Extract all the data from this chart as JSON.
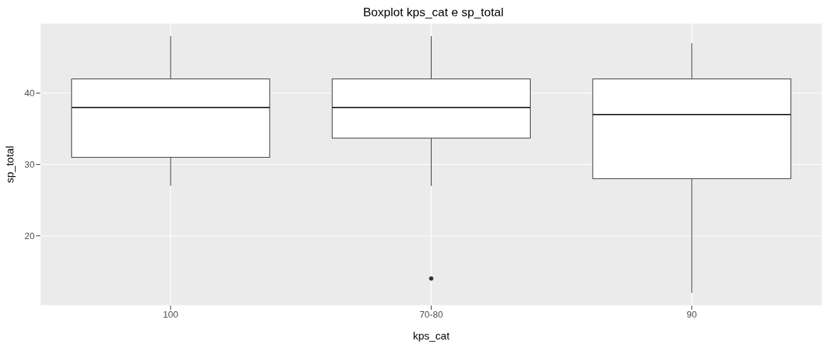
{
  "chart_data": {
    "type": "box",
    "title": "Boxplot kps_cat e sp_total",
    "xlabel": "kps_cat",
    "ylabel": "sp_total",
    "categories": [
      "100",
      "70-80",
      "90"
    ],
    "boxes": [
      {
        "low": 27,
        "q1": 31,
        "median": 38,
        "q3": 42,
        "high": 48
      },
      {
        "low": 27,
        "q1": 33.7,
        "median": 38,
        "q3": 42,
        "high": 48,
        "outliers": [
          14
        ]
      },
      {
        "low": 12,
        "q1": 28,
        "median": 37,
        "q3": 42,
        "high": 47
      }
    ],
    "ylim": [
      10.2,
      49.8
    ],
    "yticks": [
      20,
      30,
      40
    ],
    "grid": true
  }
}
